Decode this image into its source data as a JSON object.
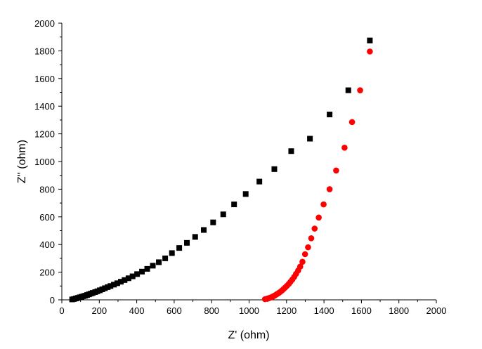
{
  "chart_data": {
    "type": "scatter",
    "title": "",
    "xlabel": "Z' (ohm)",
    "ylabel": "Z'' (ohm)",
    "xlim": [
      0,
      2000
    ],
    "ylim": [
      0,
      2000
    ],
    "xticks": [
      0,
      200,
      400,
      600,
      800,
      1000,
      1200,
      1400,
      1600,
      1800,
      2000
    ],
    "yticks": [
      0,
      200,
      400,
      600,
      800,
      1000,
      1200,
      1400,
      1600,
      1800,
      2000
    ],
    "grid": false,
    "legend": "none",
    "series": [
      {
        "marker": "square",
        "color": "#000000",
        "points": [
          [
            55,
            3
          ],
          [
            65,
            6
          ],
          [
            75,
            10
          ],
          [
            85,
            14
          ],
          [
            95,
            18
          ],
          [
            105,
            22
          ],
          [
            115,
            26
          ],
          [
            125,
            30
          ],
          [
            135,
            35
          ],
          [
            145,
            40
          ],
          [
            155,
            45
          ],
          [
            165,
            50
          ],
          [
            178,
            56
          ],
          [
            190,
            62
          ],
          [
            203,
            69
          ],
          [
            216,
            76
          ],
          [
            230,
            84
          ],
          [
            245,
            92
          ],
          [
            260,
            100
          ],
          [
            278,
            110
          ],
          [
            296,
            120
          ],
          [
            315,
            131
          ],
          [
            335,
            143
          ],
          [
            356,
            156
          ],
          [
            378,
            170
          ],
          [
            402,
            186
          ],
          [
            428,
            204
          ],
          [
            456,
            224
          ],
          [
            486,
            247
          ],
          [
            518,
            272
          ],
          [
            552,
            300
          ],
          [
            588,
            338
          ],
          [
            627,
            375
          ],
          [
            668,
            412
          ],
          [
            712,
            455
          ],
          [
            758,
            505
          ],
          [
            808,
            560
          ],
          [
            862,
            618
          ],
          [
            920,
            690
          ],
          [
            982,
            765
          ],
          [
            1055,
            855
          ],
          [
            1135,
            945
          ],
          [
            1225,
            1075
          ],
          [
            1325,
            1165
          ],
          [
            1430,
            1340
          ],
          [
            1530,
            1515
          ],
          [
            1645,
            1875
          ]
        ]
      },
      {
        "marker": "circle",
        "color": "#ff0000",
        "points": [
          [
            1085,
            5
          ],
          [
            1095,
            8
          ],
          [
            1103,
            11
          ],
          [
            1110,
            14
          ],
          [
            1117,
            18
          ],
          [
            1124,
            22
          ],
          [
            1131,
            27
          ],
          [
            1138,
            32
          ],
          [
            1145,
            38
          ],
          [
            1152,
            44
          ],
          [
            1160,
            51
          ],
          [
            1168,
            59
          ],
          [
            1176,
            68
          ],
          [
            1184,
            78
          ],
          [
            1193,
            89
          ],
          [
            1202,
            101
          ],
          [
            1212,
            115
          ],
          [
            1221,
            130
          ],
          [
            1231,
            147
          ],
          [
            1241,
            166
          ],
          [
            1251,
            188
          ],
          [
            1262,
            212
          ],
          [
            1273,
            240
          ],
          [
            1285,
            275
          ],
          [
            1299,
            330
          ],
          [
            1315,
            380
          ],
          [
            1332,
            445
          ],
          [
            1350,
            515
          ],
          [
            1372,
            595
          ],
          [
            1398,
            690
          ],
          [
            1430,
            800
          ],
          [
            1465,
            935
          ],
          [
            1510,
            1100
          ],
          [
            1550,
            1285
          ],
          [
            1593,
            1515
          ],
          [
            1645,
            1795
          ]
        ]
      }
    ]
  }
}
